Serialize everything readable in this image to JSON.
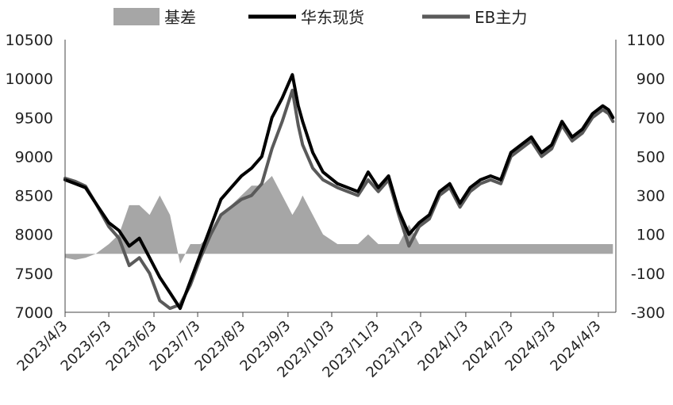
{
  "chart_data": {
    "type": "line",
    "legend_position": "top",
    "grid": false,
    "x_ticks": [
      "2023/4/3",
      "2023/5/3",
      "2023/6/3",
      "2023/7/3",
      "2023/8/3",
      "2023/9/3",
      "2023/10/3",
      "2023/11/3",
      "2023/12/3",
      "2024/1/3",
      "2024/2/3",
      "2024/3/3",
      "2024/4/3"
    ],
    "x_range": [
      "2023/4/3",
      "2024/4/15"
    ],
    "y_left": {
      "min": 7000,
      "max": 10500,
      "ticks": [
        7000,
        7500,
        8000,
        8500,
        9000,
        9500,
        10000,
        10500
      ]
    },
    "y_right": {
      "min": -300,
      "max": 1100,
      "ticks": [
        -300,
        -100,
        100,
        300,
        500,
        700,
        900,
        1100
      ]
    },
    "colors": {
      "basis": "#a6a6a6",
      "spot": "#000000",
      "futures": "#5a5a5a"
    },
    "legend": [
      {
        "label": "基差",
        "marker": "area",
        "color": "#a6a6a6"
      },
      {
        "label": "华东现货",
        "marker": "line",
        "color": "#000000"
      },
      {
        "label": "EB主力",
        "marker": "line",
        "color": "#5a5a5a"
      }
    ],
    "series": [
      {
        "name": "华东现货",
        "axis": "left",
        "kind": "line",
        "x": [
          "2023/4/3",
          "2023/4/10",
          "2023/4/17",
          "2023/4/24",
          "2023/5/3",
          "2023/5/10",
          "2023/5/17",
          "2023/5/24",
          "2023/5/31",
          "2023/6/7",
          "2023/6/14",
          "2023/6/21",
          "2023/6/28",
          "2023/7/5",
          "2023/7/12",
          "2023/7/19",
          "2023/7/26",
          "2023/8/2",
          "2023/8/9",
          "2023/8/16",
          "2023/8/23",
          "2023/8/30",
          "2023/9/6",
          "2023/9/10",
          "2023/9/13",
          "2023/9/20",
          "2023/9/27",
          "2023/10/7",
          "2023/10/14",
          "2023/10/21",
          "2023/10/28",
          "2023/11/4",
          "2023/11/11",
          "2023/11/18",
          "2023/11/25",
          "2023/12/2",
          "2023/12/9",
          "2023/12/16",
          "2023/12/23",
          "2023/12/30",
          "2024/1/6",
          "2024/1/13",
          "2024/1/20",
          "2024/1/27",
          "2024/2/3",
          "2024/2/17",
          "2024/2/24",
          "2024/3/2",
          "2024/3/9",
          "2024/3/16",
          "2024/3/23",
          "2024/3/30",
          "2024/4/6",
          "2024/4/10",
          "2024/4/13"
        ],
        "y": [
          8700,
          8650,
          8600,
          8400,
          8150,
          8050,
          7850,
          7950,
          7700,
          7450,
          7250,
          7050,
          7400,
          7750,
          8100,
          8450,
          8600,
          8750,
          8850,
          9000,
          9500,
          9750,
          10050,
          9650,
          9450,
          9050,
          8800,
          8650,
          8600,
          8550,
          8800,
          8600,
          8750,
          8300,
          8000,
          8150,
          8250,
          8550,
          8650,
          8400,
          8600,
          8700,
          8750,
          8700,
          9050,
          9250,
          9050,
          9150,
          9450,
          9250,
          9350,
          9550,
          9650,
          9600,
          9500
        ]
      },
      {
        "name": "EB主力",
        "axis": "left",
        "kind": "line",
        "x": [
          "2023/4/3",
          "2023/4/10",
          "2023/4/17",
          "2023/4/24",
          "2023/5/3",
          "2023/5/10",
          "2023/5/17",
          "2023/5/24",
          "2023/5/31",
          "2023/6/7",
          "2023/6/14",
          "2023/6/21",
          "2023/6/28",
          "2023/7/5",
          "2023/7/12",
          "2023/7/19",
          "2023/7/26",
          "2023/8/2",
          "2023/8/9",
          "2023/8/16",
          "2023/8/23",
          "2023/8/30",
          "2023/9/6",
          "2023/9/10",
          "2023/9/13",
          "2023/9/20",
          "2023/9/27",
          "2023/10/7",
          "2023/10/14",
          "2023/10/21",
          "2023/10/28",
          "2023/11/4",
          "2023/11/11",
          "2023/11/18",
          "2023/11/25",
          "2023/12/2",
          "2023/12/9",
          "2023/12/16",
          "2023/12/23",
          "2023/12/30",
          "2024/1/6",
          "2024/1/13",
          "2024/1/20",
          "2024/1/27",
          "2024/2/3",
          "2024/2/17",
          "2024/2/24",
          "2024/3/2",
          "2024/3/9",
          "2024/3/16",
          "2024/3/23",
          "2024/3/30",
          "2024/4/6",
          "2024/4/10",
          "2024/4/13"
        ],
        "y": [
          8720,
          8680,
          8620,
          8400,
          8100,
          7950,
          7600,
          7700,
          7500,
          7150,
          7050,
          7100,
          7350,
          7700,
          8000,
          8250,
          8350,
          8450,
          8500,
          8650,
          9100,
          9450,
          9850,
          9400,
          9150,
          8850,
          8700,
          8600,
          8550,
          8500,
          8700,
          8550,
          8700,
          8250,
          7850,
          8100,
          8200,
          8500,
          8600,
          8350,
          8550,
          8650,
          8700,
          8650,
          9000,
          9200,
          9000,
          9100,
          9400,
          9200,
          9300,
          9500,
          9600,
          9550,
          9450
        ]
      },
      {
        "name": "基差",
        "axis": "right",
        "kind": "area",
        "x": [
          "2023/4/3",
          "2023/4/10",
          "2023/4/17",
          "2023/4/24",
          "2023/5/3",
          "2023/5/10",
          "2023/5/17",
          "2023/5/24",
          "2023/5/31",
          "2023/6/7",
          "2023/6/14",
          "2023/6/21",
          "2023/6/28",
          "2023/7/5",
          "2023/7/12",
          "2023/7/19",
          "2023/7/26",
          "2023/8/2",
          "2023/8/9",
          "2023/8/16",
          "2023/8/23",
          "2023/8/30",
          "2023/9/6",
          "2023/9/10",
          "2023/9/13",
          "2023/9/20",
          "2023/9/27",
          "2023/10/7",
          "2023/10/14",
          "2023/10/21",
          "2023/10/28",
          "2023/11/4",
          "2023/11/11",
          "2023/11/18",
          "2023/11/25",
          "2023/12/2",
          "2023/12/9",
          "2023/12/16",
          "2023/12/23",
          "2023/12/30",
          "2024/1/6",
          "2024/1/13",
          "2024/1/20",
          "2024/1/27",
          "2024/2/3",
          "2024/2/17",
          "2024/2/24",
          "2024/3/2",
          "2024/3/9",
          "2024/3/16",
          "2024/3/23",
          "2024/3/30",
          "2024/4/6",
          "2024/4/10",
          "2024/4/13"
        ],
        "y": [
          -20,
          -30,
          -20,
          0,
          50,
          100,
          250,
          250,
          200,
          300,
          200,
          -50,
          50,
          50,
          100,
          200,
          250,
          300,
          350,
          350,
          400,
          300,
          200,
          250,
          300,
          200,
          100,
          50,
          50,
          50,
          100,
          50,
          50,
          50,
          150,
          50,
          50,
          50,
          50,
          50,
          50,
          50,
          50,
          50,
          50,
          50,
          50,
          50,
          50,
          50,
          50,
          50,
          50,
          50,
          50
        ]
      }
    ]
  }
}
